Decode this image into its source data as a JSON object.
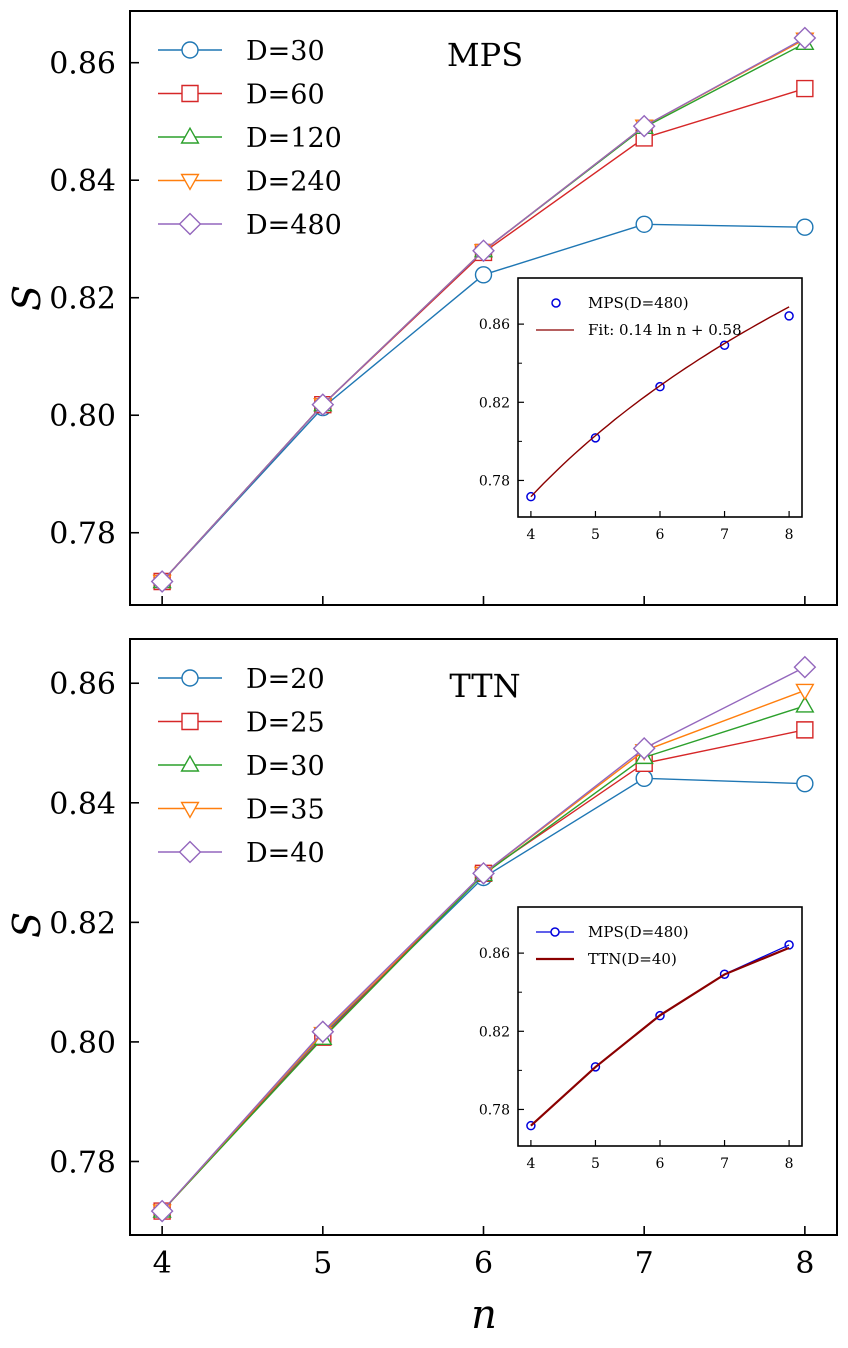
{
  "figure": {
    "xlabel": "n",
    "ylabel": "S"
  },
  "colors": {
    "blue": "#1f77b4",
    "red": "#d62728",
    "green": "#2ca02c",
    "orange": "#ff7f0e",
    "purple": "#9467bd",
    "inset_marker": "#0000dd",
    "inset_fit": "#8b0000"
  },
  "chart_data": [
    {
      "type": "line",
      "id": "mps",
      "title": "MPS",
      "xlabel": "",
      "ylabel": "S",
      "xlim": [
        3.8,
        8.2
      ],
      "ylim": [
        0.7677,
        0.8688
      ],
      "xticks": [
        4,
        5,
        6,
        7,
        8
      ],
      "yticks": [
        0.78,
        0.8,
        0.82,
        0.84,
        0.86
      ],
      "ytick_labels": [
        "0.78",
        "0.80",
        "0.82",
        "0.84",
        "0.86"
      ],
      "xtick_labels_shown": false,
      "x": [
        4,
        5,
        6,
        7,
        8
      ],
      "series": [
        {
          "name": "D=30",
          "marker": "circle",
          "color": "#1f77b4",
          "values": [
            0.7717,
            0.8013,
            0.8239,
            0.8325,
            0.832
          ]
        },
        {
          "name": "D=60",
          "marker": "square",
          "color": "#d62728",
          "values": [
            0.7717,
            0.8018,
            0.8277,
            0.8472,
            0.8556
          ]
        },
        {
          "name": "D=120",
          "marker": "triangle-up",
          "color": "#2ca02c",
          "values": [
            0.7717,
            0.8018,
            0.828,
            0.849,
            0.8633
          ]
        },
        {
          "name": "D=240",
          "marker": "triangle-down",
          "color": "#ff7f0e",
          "values": [
            0.7717,
            0.8018,
            0.828,
            0.8492,
            0.864
          ]
        },
        {
          "name": "D=480",
          "marker": "diamond",
          "color": "#9467bd",
          "values": [
            0.7717,
            0.8018,
            0.828,
            0.8492,
            0.8642
          ]
        }
      ],
      "legend": "top-left",
      "inset": {
        "xlim": [
          3.8,
          8.2
        ],
        "ylim": [
          0.7613,
          0.8836
        ],
        "xticks": [
          4,
          5,
          6,
          7,
          8
        ],
        "yticks": [
          0.78,
          0.82,
          0.86
        ],
        "ytick_labels": [
          "0.78",
          "0.82",
          "0.86"
        ],
        "legend": "top-left",
        "series": [
          {
            "name": "MPS(D=480)",
            "kind": "markers",
            "marker": "circle",
            "color": "#0000dd",
            "x": [
              4,
              5,
              6,
              7,
              8
            ],
            "values": [
              0.7717,
              0.8018,
              0.828,
              0.8492,
              0.8642
            ]
          },
          {
            "name": "Fit: 0.14 ln n + 0.58",
            "kind": "curve",
            "color": "#8b0000",
            "x": [
              4,
              5,
              6,
              7,
              8
            ],
            "values": [
              0.7717,
              0.803,
              0.8285,
              0.8501,
              0.8688
            ]
          }
        ]
      }
    },
    {
      "type": "line",
      "id": "ttn",
      "title": "TTN",
      "xlabel": "n",
      "ylabel": "S",
      "xlim": [
        3.8,
        8.2
      ],
      "ylim": [
        0.7677,
        0.8674
      ],
      "xticks": [
        4,
        5,
        6,
        7,
        8
      ],
      "xtick_labels": [
        "4",
        "5",
        "6",
        "7",
        "8"
      ],
      "yticks": [
        0.78,
        0.8,
        0.82,
        0.84,
        0.86
      ],
      "ytick_labels": [
        "0.78",
        "0.80",
        "0.82",
        "0.84",
        "0.86"
      ],
      "x": [
        4,
        5,
        6,
        7,
        8
      ],
      "series": [
        {
          "name": "D=20",
          "marker": "circle",
          "color": "#1f77b4",
          "values": [
            0.7717,
            0.8012,
            0.8275,
            0.8441,
            0.8432
          ]
        },
        {
          "name": "D=25",
          "marker": "square",
          "color": "#d62728",
          "values": [
            0.7717,
            0.8008,
            0.8282,
            0.8466,
            0.8522
          ]
        },
        {
          "name": "D=30",
          "marker": "triangle-up",
          "color": "#2ca02c",
          "values": [
            0.7717,
            0.8006,
            0.828,
            0.8476,
            0.8562
          ]
        },
        {
          "name": "D=35",
          "marker": "triangle-down",
          "color": "#ff7f0e",
          "values": [
            0.7717,
            0.8014,
            0.8282,
            0.8487,
            0.8588
          ]
        },
        {
          "name": "D=40",
          "marker": "diamond",
          "color": "#9467bd",
          "values": [
            0.7717,
            0.8017,
            0.8282,
            0.8491,
            0.8627
          ]
        }
      ],
      "legend": "top-left",
      "inset": {
        "xlim": [
          3.8,
          8.2
        ],
        "ylim": [
          0.7613,
          0.8836
        ],
        "xticks": [
          4,
          5,
          6,
          7,
          8
        ],
        "yticks": [
          0.78,
          0.82,
          0.86
        ],
        "ytick_labels": [
          "0.78",
          "0.82",
          "0.86"
        ],
        "legend": "top-left",
        "series": [
          {
            "name": "MPS(D=480)",
            "kind": "line-markers",
            "marker": "circle",
            "color": "#0000dd",
            "x": [
              4,
              5,
              6,
              7,
              8
            ],
            "values": [
              0.7717,
              0.8018,
              0.828,
              0.8492,
              0.8642
            ]
          },
          {
            "name": "TTN(D=40)",
            "kind": "line",
            "color": "#8b0000",
            "x": [
              4,
              5,
              6,
              7,
              8
            ],
            "values": [
              0.7717,
              0.8017,
              0.8282,
              0.8491,
              0.8627
            ]
          }
        ]
      }
    }
  ]
}
